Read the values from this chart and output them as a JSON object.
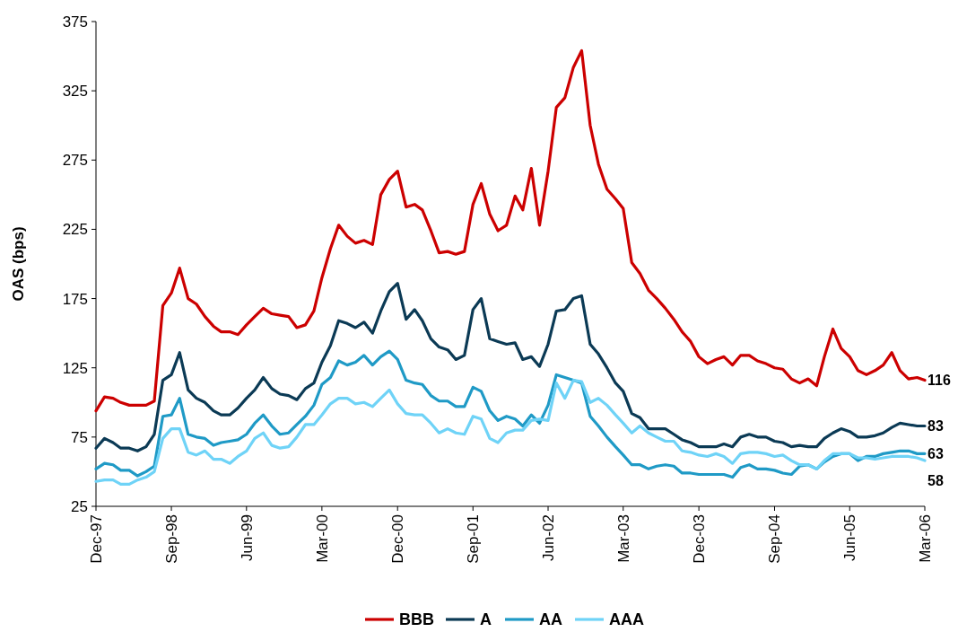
{
  "chart_data": {
    "type": "line",
    "ylabel": "OAS (bps)",
    "legend": "bottom",
    "grid": false,
    "marker": "none",
    "line_style": "solid",
    "x": [
      "1997-12",
      "1998-01",
      "1998-02",
      "1998-03",
      "1998-04",
      "1998-05",
      "1998-06",
      "1998-07",
      "1998-08",
      "1998-09",
      "1998-10",
      "1998-11",
      "1998-12",
      "1999-01",
      "1999-02",
      "1999-03",
      "1999-04",
      "1999-05",
      "1999-06",
      "1999-07",
      "1999-08",
      "1999-09",
      "1999-10",
      "1999-11",
      "1999-12",
      "2000-01",
      "2000-02",
      "2000-03",
      "2000-04",
      "2000-05",
      "2000-06",
      "2000-07",
      "2000-08",
      "2000-09",
      "2000-10",
      "2000-11",
      "2000-12",
      "2001-01",
      "2001-02",
      "2001-03",
      "2001-04",
      "2001-05",
      "2001-06",
      "2001-07",
      "2001-08",
      "2001-09",
      "2001-10",
      "2001-11",
      "2001-12",
      "2002-01",
      "2002-02",
      "2002-03",
      "2002-04",
      "2002-05",
      "2002-06",
      "2002-07",
      "2002-08",
      "2002-09",
      "2002-10",
      "2002-11",
      "2002-12",
      "2003-01",
      "2003-02",
      "2003-03",
      "2003-04",
      "2003-05",
      "2003-06",
      "2003-07",
      "2003-08",
      "2003-09",
      "2003-10",
      "2003-11",
      "2003-12",
      "2004-01",
      "2004-02",
      "2004-03",
      "2004-04",
      "2004-05",
      "2004-06",
      "2004-07",
      "2004-08",
      "2004-09",
      "2004-10",
      "2004-11",
      "2004-12",
      "2005-01",
      "2005-02",
      "2005-03",
      "2005-04",
      "2005-05",
      "2005-06",
      "2005-07",
      "2005-08",
      "2005-09",
      "2005-10",
      "2005-11",
      "2005-12",
      "2006-01",
      "2006-02",
      "2006-03"
    ],
    "xlim": [
      "1997-12",
      "2006-03"
    ],
    "xticks": [
      {
        "value": "1997-12",
        "label": "Dec-97"
      },
      {
        "value": "1998-09",
        "label": "Sep-98"
      },
      {
        "value": "1999-06",
        "label": "Jun-99"
      },
      {
        "value": "2000-03",
        "label": "Mar-00"
      },
      {
        "value": "2000-12",
        "label": "Dec-00"
      },
      {
        "value": "2001-09",
        "label": "Sep-01"
      },
      {
        "value": "2002-06",
        "label": "Jun-02"
      },
      {
        "value": "2003-03",
        "label": "Mar-03"
      },
      {
        "value": "2003-12",
        "label": "Dec-03"
      },
      {
        "value": "2004-09",
        "label": "Sep-04"
      },
      {
        "value": "2005-06",
        "label": "Jun-05"
      },
      {
        "value": "2006-03",
        "label": "Mar-06"
      }
    ],
    "ylim": [
      25,
      375
    ],
    "yticks": [
      25,
      75,
      125,
      175,
      225,
      275,
      325,
      375
    ],
    "series": [
      {
        "name": "BBB",
        "color": "#cc0000",
        "values": [
          94,
          104,
          103,
          100,
          98,
          98,
          98,
          101,
          170,
          179,
          197,
          175,
          171,
          162,
          155,
          151,
          151,
          149,
          156,
          162,
          168,
          164,
          163,
          162,
          154,
          156,
          166,
          190,
          211,
          228,
          220,
          215,
          217,
          214,
          250,
          261,
          267,
          241,
          243,
          239,
          224,
          208,
          209,
          207,
          209,
          243,
          258,
          236,
          224,
          228,
          249,
          239,
          269,
          228,
          267,
          313,
          320,
          342,
          354,
          300,
          272,
          254,
          247,
          240,
          201,
          193,
          181,
          175,
          168,
          160,
          151,
          144,
          133,
          128,
          131,
          133,
          127,
          134,
          134,
          130,
          128,
          125,
          124,
          117,
          114,
          117,
          112,
          133,
          153,
          139,
          133,
          123,
          120,
          123,
          127,
          136,
          123,
          117,
          118,
          116
        ]
      },
      {
        "name": "A",
        "color": "#0b3a55",
        "values": [
          67,
          74,
          71,
          67,
          67,
          65,
          68,
          77,
          116,
          120,
          136,
          109,
          103,
          100,
          94,
          91,
          91,
          96,
          103,
          109,
          118,
          110,
          106,
          105,
          102,
          110,
          114,
          129,
          141,
          159,
          157,
          154,
          158,
          150,
          166,
          180,
          186,
          160,
          167,
          159,
          146,
          140,
          138,
          131,
          134,
          167,
          175,
          146,
          144,
          142,
          143,
          131,
          133,
          126,
          142,
          166,
          167,
          175,
          177,
          142,
          135,
          125,
          114,
          108,
          92,
          89,
          81,
          81,
          81,
          77,
          73,
          71,
          68,
          68,
          68,
          70,
          68,
          75,
          77,
          75,
          75,
          72,
          71,
          68,
          69,
          68,
          68,
          74,
          78,
          81,
          79,
          75,
          75,
          76,
          78,
          82,
          85,
          84,
          83,
          83
        ]
      },
      {
        "name": "AA",
        "color": "#1f9ac6",
        "values": [
          52,
          56,
          55,
          51,
          51,
          47,
          50,
          54,
          90,
          91,
          103,
          77,
          75,
          74,
          69,
          71,
          72,
          73,
          77,
          85,
          91,
          83,
          77,
          78,
          84,
          90,
          98,
          113,
          118,
          130,
          127,
          129,
          134,
          127,
          133,
          137,
          131,
          116,
          114,
          113,
          105,
          101,
          101,
          97,
          97,
          111,
          108,
          94,
          87,
          90,
          88,
          83,
          91,
          85,
          98,
          120,
          118,
          116,
          114,
          90,
          83,
          75,
          68,
          62,
          55,
          55,
          52,
          54,
          55,
          54,
          49,
          49,
          48,
          48,
          48,
          48,
          46,
          53,
          55,
          52,
          52,
          51,
          49,
          48,
          54,
          55,
          52,
          57,
          61,
          63,
          63,
          58,
          61,
          61,
          63,
          64,
          65,
          65,
          63,
          63
        ]
      },
      {
        "name": "AAA",
        "color": "#6fd3f7",
        "values": [
          43,
          44,
          44,
          41,
          41,
          44,
          46,
          50,
          74,
          81,
          81,
          64,
          62,
          65,
          59,
          59,
          56,
          61,
          65,
          74,
          78,
          69,
          67,
          68,
          75,
          84,
          84,
          91,
          99,
          103,
          103,
          99,
          100,
          97,
          103,
          109,
          99,
          92,
          91,
          91,
          85,
          78,
          81,
          78,
          77,
          90,
          88,
          74,
          71,
          78,
          80,
          80,
          87,
          88,
          87,
          114,
          103,
          116,
          115,
          100,
          103,
          98,
          91,
          85,
          78,
          83,
          78,
          75,
          72,
          72,
          65,
          64,
          62,
          61,
          63,
          61,
          56,
          63,
          64,
          64,
          63,
          61,
          62,
          58,
          55,
          55,
          52,
          58,
          63,
          63,
          63,
          60,
          60,
          59,
          60,
          61,
          61,
          61,
          60,
          58
        ]
      }
    ],
    "annotations": [
      {
        "text": "116",
        "x": "2006-03",
        "y": 116
      },
      {
        "text": "83",
        "x": "2006-03",
        "y": 83
      },
      {
        "text": "63",
        "x": "2006-03",
        "y": 63
      },
      {
        "text": "58",
        "x": "2006-03",
        "y": 58
      }
    ]
  }
}
